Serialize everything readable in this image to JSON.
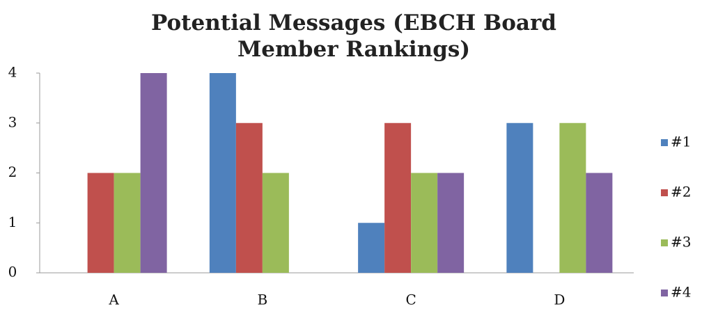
{
  "chart_data": {
    "type": "bar",
    "title": "Potential Messages (EBCH Board Member Rankings)",
    "categories": [
      "A",
      "B",
      "C",
      "D"
    ],
    "series": [
      {
        "name": "#1",
        "color": "#4f81bd",
        "values": [
          0,
          4,
          1,
          3
        ]
      },
      {
        "name": "#2",
        "color": "#c0504d",
        "values": [
          2,
          3,
          3,
          0
        ]
      },
      {
        "name": "#3",
        "color": "#9bbb59",
        "values": [
          2,
          2,
          2,
          3
        ]
      },
      {
        "name": "#4",
        "color": "#8064a2",
        "values": [
          4,
          0,
          2,
          2
        ]
      }
    ],
    "ylim": [
      0,
      4
    ],
    "yticks": [
      0,
      1,
      2,
      3,
      4
    ],
    "grid": false,
    "legend": "right"
  }
}
